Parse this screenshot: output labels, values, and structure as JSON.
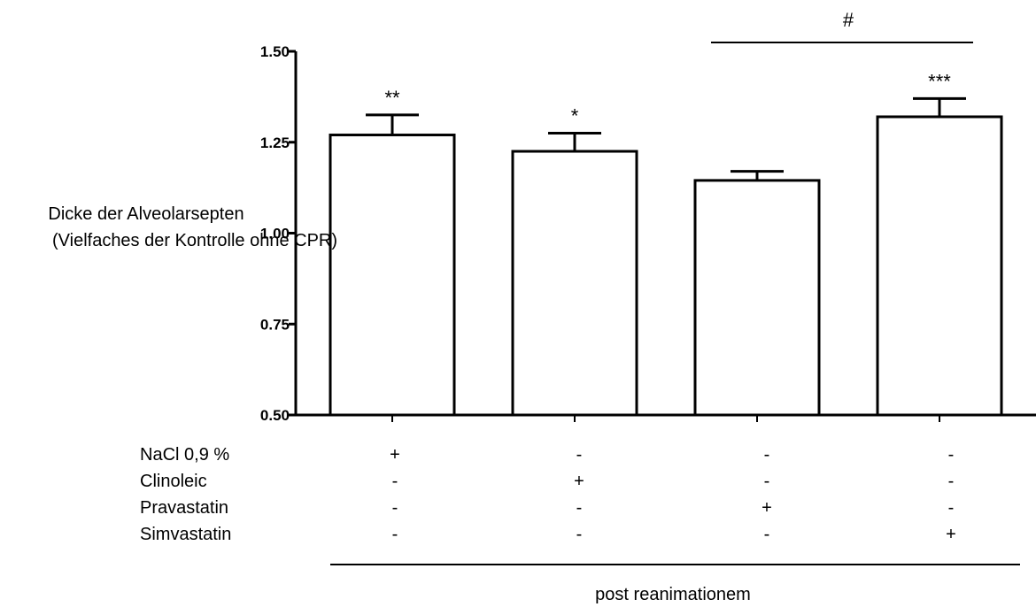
{
  "chart_data": {
    "type": "bar",
    "categories": [
      "",
      "",
      "",
      ""
    ],
    "values": [
      1.27,
      1.225,
      1.145,
      1.32
    ],
    "errors": [
      0.055,
      0.05,
      0.025,
      0.05
    ],
    "significance": [
      "**",
      "*",
      "",
      "***"
    ],
    "ylabel_line1": "Dicke der Alveolarsepten",
    "ylabel_line2": "(Vielfaches der Kontrolle ohne CPR)",
    "ylim": [
      0.5,
      1.5
    ],
    "yticks": [
      0.5,
      0.75,
      1.0,
      1.25,
      1.5
    ],
    "ytick_labels": [
      "0.50",
      "0.75",
      "1.00",
      "1.25",
      "1.50"
    ],
    "comparison": {
      "from": 2,
      "to": 3,
      "label": "#"
    },
    "treatment_rows": [
      {
        "label": "NaCl 0,9 %",
        "marks": [
          "+",
          "-",
          "-",
          "-"
        ]
      },
      {
        "label": "Clinoleic",
        "marks": [
          "-",
          "+",
          "-",
          "-"
        ]
      },
      {
        "label": "Pravastatin",
        "marks": [
          "-",
          "-",
          "+",
          "-"
        ]
      },
      {
        "label": "Simvastatin",
        "marks": [
          "-",
          "-",
          "-",
          "+"
        ]
      }
    ],
    "group_label": "post reanimationem",
    "colors": {
      "bar_fill": "#ffffff",
      "stroke": "#000000"
    }
  }
}
